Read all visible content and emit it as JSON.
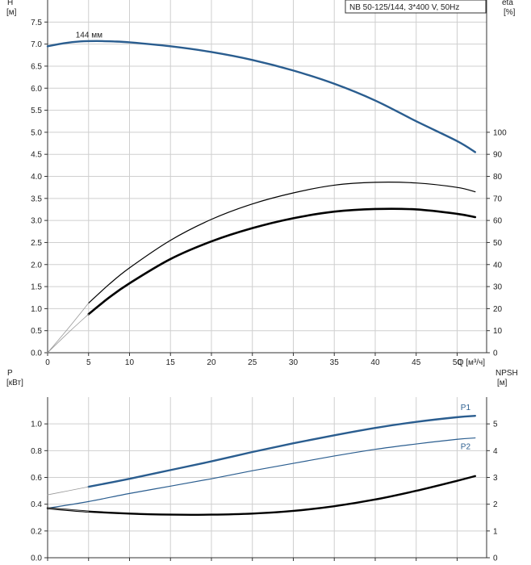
{
  "chart_data": [
    {
      "type": "line",
      "title": "NB 50-125/144, 3*400 V, 50Hz",
      "xlabel": "Q [м³/ч]",
      "ylabel": "H\n[м]",
      "ylabel_right": "eta\n[%]",
      "xlim": [
        0,
        53.6
      ],
      "ylim": [
        0,
        8
      ],
      "ylim_right": [
        0,
        160
      ],
      "x_ticks": [
        0,
        5,
        10,
        15,
        20,
        25,
        30,
        35,
        40,
        45,
        50
      ],
      "y_ticks": [
        "0.0",
        "0.5",
        "1.0",
        "1.5",
        "2.0",
        "2.5",
        "3.0",
        "3.5",
        "4.0",
        "4.5",
        "5.0",
        "5.5",
        "6.0",
        "6.5",
        "7.0",
        "7.5"
      ],
      "y_ticks_right": [
        0,
        10,
        20,
        30,
        40,
        50,
        60,
        70,
        80,
        90,
        100
      ],
      "grid": true,
      "annotations": [
        {
          "text": "144 мм",
          "x": 5.0,
          "y": 7.15
        }
      ],
      "series": [
        {
          "axis": "left",
          "color": "#2a5d8f",
          "width": 2.4,
          "x": [
            0,
            2,
            4,
            6,
            8,
            10,
            15,
            20,
            25,
            30,
            35,
            40,
            45,
            50,
            52.2
          ],
          "y": [
            6.95,
            7.02,
            7.06,
            7.07,
            7.06,
            7.04,
            6.95,
            6.82,
            6.64,
            6.4,
            6.1,
            5.72,
            5.25,
            4.8,
            4.55
          ]
        },
        {
          "axis": "right",
          "color": "#000000",
          "width": 1.2,
          "x": [
            5,
            7.5,
            10,
            15,
            20,
            25,
            30,
            35,
            40,
            45,
            50,
            52.2
          ],
          "y": [
            22.5,
            31,
            38.5,
            51,
            60.5,
            67.5,
            72.5,
            76,
            77.3,
            77,
            75,
            73
          ]
        },
        {
          "axis": "right",
          "color": "#000000",
          "width": 2.6,
          "x": [
            5,
            7.5,
            10,
            15,
            20,
            25,
            30,
            35,
            40,
            45,
            50,
            52.2
          ],
          "y": [
            17.5,
            25,
            31.5,
            42.5,
            50.5,
            56.5,
            61,
            64,
            65.2,
            65,
            63,
            61.5
          ]
        },
        {
          "axis": "right",
          "color": "#999999",
          "width": 0.8,
          "x": [
            0,
            2.5,
            5
          ],
          "y": [
            0,
            11,
            22.5
          ]
        },
        {
          "axis": "right",
          "color": "#999999",
          "width": 0.8,
          "x": [
            0,
            2.5,
            5
          ],
          "y": [
            0,
            9,
            17.5
          ]
        }
      ]
    },
    {
      "type": "line",
      "xlabel": "",
      "ylabel": "P\n[кВт]",
      "ylabel_right": "NPSH\n[м]",
      "xlim": [
        0,
        53.6
      ],
      "ylim": [
        0,
        1.2
      ],
      "ylim_right": [
        0,
        6
      ],
      "y_ticks": [
        "0.0",
        "0.2",
        "0.4",
        "0.6",
        "0.8",
        "1.0"
      ],
      "y_ticks_right": [
        0,
        1,
        2,
        3,
        4,
        5
      ],
      "grid": true,
      "series": [
        {
          "name": "P1",
          "axis": "left",
          "color": "#2a5d8f",
          "width": 2.4,
          "x": [
            5,
            10,
            15,
            20,
            25,
            30,
            35,
            40,
            45,
            50,
            52.2
          ],
          "y": [
            0.53,
            0.59,
            0.655,
            0.72,
            0.79,
            0.855,
            0.915,
            0.97,
            1.015,
            1.05,
            1.06
          ]
        },
        {
          "name": "P2",
          "axis": "left",
          "color": "#2a5d8f",
          "width": 1.2,
          "x": [
            0,
            5,
            10,
            15,
            20,
            25,
            30,
            35,
            40,
            45,
            50,
            52.2
          ],
          "y": [
            0.37,
            0.42,
            0.48,
            0.535,
            0.59,
            0.65,
            0.705,
            0.76,
            0.81,
            0.85,
            0.885,
            0.895
          ]
        },
        {
          "axis": "left",
          "color": "#000000",
          "width": 2.4,
          "x": [
            0,
            5,
            10,
            15,
            20,
            25,
            30,
            35,
            40,
            45,
            50,
            52.2
          ],
          "y": [
            0.37,
            0.345,
            0.33,
            0.322,
            0.322,
            0.33,
            0.35,
            0.385,
            0.435,
            0.5,
            0.575,
            0.61
          ]
        },
        {
          "axis": "left",
          "color": "#999999",
          "width": 0.8,
          "x": [
            0,
            2.5,
            5
          ],
          "y": [
            0.47,
            0.5,
            0.53
          ]
        },
        {
          "axis": "left",
          "color": "#999999",
          "width": 0.8,
          "x": [
            0,
            2.5,
            5
          ],
          "y": [
            0.37,
            0.358,
            0.345
          ]
        }
      ]
    }
  ]
}
